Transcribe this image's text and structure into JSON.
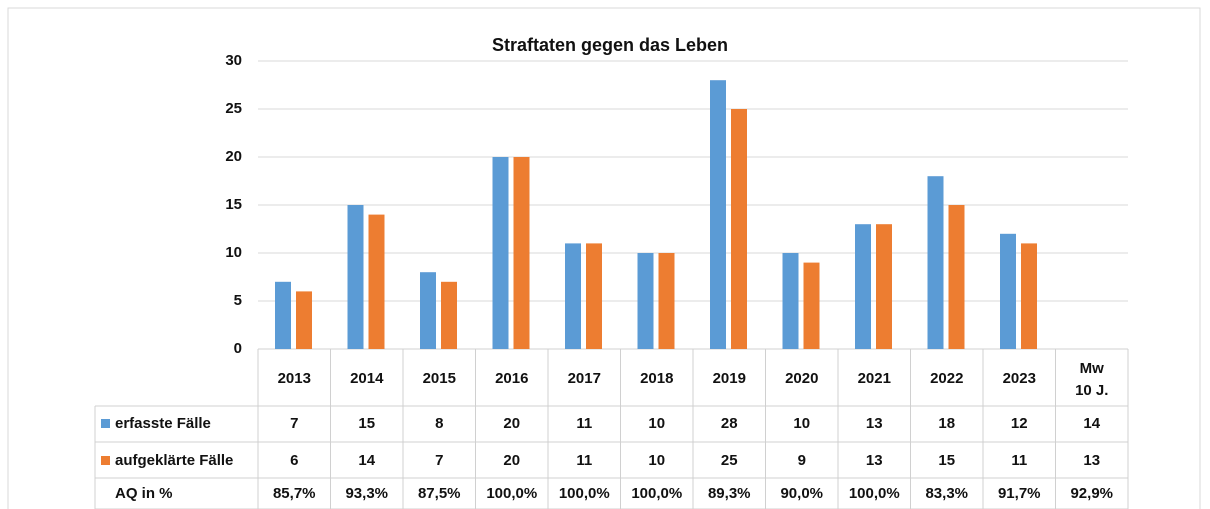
{
  "chart_data": {
    "type": "bar",
    "title": "Straftaten gegen das Leben",
    "categories": [
      "2013",
      "2014",
      "2015",
      "2016",
      "2017",
      "2018",
      "2019",
      "2020",
      "2021",
      "2022",
      "2023"
    ],
    "series": [
      {
        "name": "erfasste Fälle",
        "color": "#5b9bd5",
        "values": [
          7,
          15,
          8,
          20,
          11,
          10,
          28,
          10,
          13,
          18,
          12
        ]
      },
      {
        "name": "aufgeklärte Fälle",
        "color": "#ed7d31",
        "values": [
          6,
          14,
          7,
          20,
          11,
          10,
          25,
          9,
          13,
          15,
          11
        ]
      }
    ],
    "aq": {
      "name": "AQ in %",
      "values": [
        85.7,
        93.3,
        87.5,
        100.0,
        100.0,
        100.0,
        89.3,
        90.0,
        100.0,
        83.3,
        91.7
      ],
      "value_labels": [
        "85,7%",
        "93,3%",
        "87,5%",
        "100,0%",
        "100,0%",
        "100,0%",
        "89,3%",
        "90,0%",
        "100,0%",
        "83,3%",
        "91,7%"
      ]
    },
    "mean": {
      "label": [
        "Mw",
        "10 J."
      ],
      "values": [
        14,
        13
      ],
      "aq": 92.9,
      "aq_label": "92,9%"
    },
    "ylim": [
      0,
      30
    ],
    "yticks": [
      0,
      5,
      10,
      15,
      20,
      25,
      30
    ],
    "grid": true
  }
}
